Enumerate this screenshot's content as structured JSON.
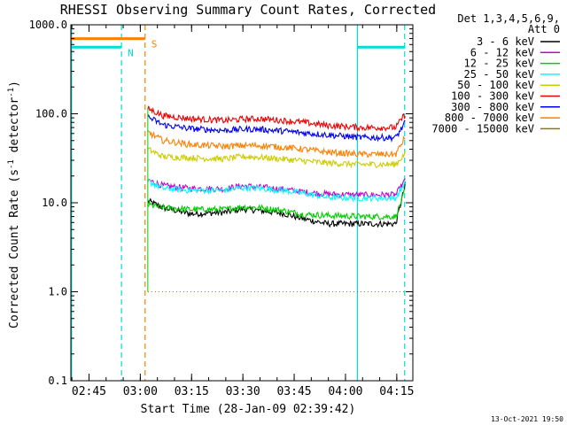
{
  "chart_data": {
    "type": "line",
    "title": "RHESSI Observing Summary Count Rates, Corrected",
    "xlabel": "Start Time (28-Jan-09 02:39:42)",
    "ylabel": "Corrected Count Rate (s",
    "ylabel_sup1": "-1",
    "ylabel_mid": " detector",
    "ylabel_sup2": "-1",
    "ylabel_end": ")",
    "x_unit": "minutes after 02:39:42",
    "xlim": [
      0,
      100
    ],
    "ylim": [
      0.1,
      1000
    ],
    "y_scale": "log",
    "x_ticks": [
      {
        "x": 5.3,
        "label": "02:45"
      },
      {
        "x": 20.3,
        "label": "03:00"
      },
      {
        "x": 35.3,
        "label": "03:15"
      },
      {
        "x": 50.3,
        "label": "03:30"
      },
      {
        "x": 65.3,
        "label": "03:45"
      },
      {
        "x": 80.3,
        "label": "04:00"
      },
      {
        "x": 95.3,
        "label": "04:15"
      }
    ],
    "y_ticks": [
      {
        "y": 0.1,
        "label": "0.1"
      },
      {
        "y": 1,
        "label": "1.0"
      },
      {
        "y": 10,
        "label": "10.0"
      },
      {
        "y": 100,
        "label": "100.0"
      },
      {
        "y": 1000,
        "label": "1000.0"
      }
    ],
    "legend": {
      "position": "right",
      "header1": "Det 1,3,4,5,6,9,",
      "header2": "Att 0"
    },
    "data_start_x": 22.5,
    "data_end_x": 97.8,
    "series": [
      {
        "name": "3 - 6 keV",
        "color": "#000000",
        "points": [
          [
            22.5,
            10.5
          ],
          [
            27,
            8.8
          ],
          [
            35,
            7.5
          ],
          [
            45,
            7.8
          ],
          [
            50,
            8.5
          ],
          [
            55,
            8.2
          ],
          [
            62,
            7.6
          ],
          [
            68,
            6.6
          ],
          [
            75,
            5.8
          ],
          [
            85,
            5.8
          ],
          [
            95,
            5.8
          ],
          [
            97.8,
            16
          ]
        ]
      },
      {
        "name": "6 - 12 keV",
        "color": "#cc00cc",
        "points": [
          [
            22.5,
            18
          ],
          [
            27,
            15.5
          ],
          [
            35,
            14.5
          ],
          [
            45,
            14.3
          ],
          [
            50,
            15.5
          ],
          [
            55,
            15
          ],
          [
            62,
            14.2
          ],
          [
            68,
            13.2
          ],
          [
            75,
            12.5
          ],
          [
            85,
            12.2
          ],
          [
            95,
            12.3
          ],
          [
            97.8,
            18
          ]
        ]
      },
      {
        "name": "12 - 25 keV",
        "color": "#00cc00",
        "points": [
          [
            22.5,
            9.5
          ],
          [
            27,
            8.8
          ],
          [
            35,
            8.4
          ],
          [
            45,
            8.4
          ],
          [
            50,
            9.0
          ],
          [
            55,
            8.8
          ],
          [
            62,
            8.2
          ],
          [
            68,
            7.4
          ],
          [
            75,
            7.2
          ],
          [
            85,
            7.0
          ],
          [
            95,
            7.0
          ],
          [
            97.8,
            14
          ]
        ]
      },
      {
        "name": "25 - 50 keV",
        "color": "#00ffff",
        "points": [
          [
            22.5,
            17.5
          ],
          [
            27,
            14.5
          ],
          [
            35,
            13.8
          ],
          [
            45,
            13.8
          ],
          [
            50,
            14.8
          ],
          [
            55,
            14.5
          ],
          [
            62,
            13.8
          ],
          [
            68,
            12.8
          ],
          [
            75,
            11.5
          ],
          [
            85,
            11.3
          ],
          [
            95,
            11.3
          ],
          [
            97.8,
            17
          ]
        ]
      },
      {
        "name": "50 - 100 keV",
        "color": "#cccc00",
        "points": [
          [
            22.5,
            40
          ],
          [
            27,
            33
          ],
          [
            35,
            32
          ],
          [
            45,
            31
          ],
          [
            50,
            33
          ],
          [
            55,
            32.5
          ],
          [
            62,
            31
          ],
          [
            68,
            29.5
          ],
          [
            75,
            28
          ],
          [
            85,
            27
          ],
          [
            95,
            27
          ],
          [
            97.8,
            36
          ]
        ]
      },
      {
        "name": "100 - 300 keV",
        "color": "#ee0000",
        "points": [
          [
            22.5,
            115
          ],
          [
            27,
            95
          ],
          [
            35,
            88
          ],
          [
            45,
            84
          ],
          [
            50,
            87
          ],
          [
            55,
            88
          ],
          [
            62,
            84
          ],
          [
            68,
            80
          ],
          [
            75,
            74
          ],
          [
            85,
            70
          ],
          [
            95,
            70
          ],
          [
            97.8,
            100
          ]
        ]
      },
      {
        "name": "300 - 800 keV",
        "color": "#0000ee",
        "points": [
          [
            22.5,
            92
          ],
          [
            27,
            75
          ],
          [
            35,
            68
          ],
          [
            45,
            65
          ],
          [
            50,
            67
          ],
          [
            55,
            67
          ],
          [
            62,
            64
          ],
          [
            68,
            61
          ],
          [
            75,
            58
          ],
          [
            85,
            54
          ],
          [
            95,
            54
          ],
          [
            97.8,
            80
          ]
        ]
      },
      {
        "name": "800 - 7000 keV",
        "color": "#ff7f00",
        "points": [
          [
            22.5,
            62
          ],
          [
            27,
            50
          ],
          [
            35,
            45
          ],
          [
            45,
            43
          ],
          [
            50,
            44
          ],
          [
            55,
            44
          ],
          [
            62,
            42
          ],
          [
            68,
            40
          ],
          [
            75,
            37
          ],
          [
            85,
            35
          ],
          [
            95,
            35
          ],
          [
            97.8,
            55
          ]
        ]
      },
      {
        "name": "7000 - 15000 keV",
        "color": "#808000",
        "points": [
          [
            22.5,
            1.0
          ],
          [
            40,
            1.0
          ],
          [
            50,
            1.0
          ],
          [
            70,
            1.0
          ],
          [
            85,
            1.0
          ],
          [
            97.8,
            1.0
          ]
        ]
      }
    ],
    "flags": [
      {
        "label": "N",
        "color": "#00dddd",
        "level": 560,
        "spans": [
          [
            0,
            14.8
          ],
          [
            83.8,
            97.8
          ]
        ]
      },
      {
        "label": "S",
        "color": "#ff7f00",
        "level": 700,
        "spans": [
          [
            0,
            21.7
          ]
        ]
      }
    ],
    "vlines": [
      {
        "x": 0.2,
        "color": "#00dddd",
        "style": "solid"
      },
      {
        "x": 14.8,
        "color": "#00dddd",
        "style": "dashed"
      },
      {
        "x": 21.7,
        "color": "#ff7f00",
        "style": "dashed"
      },
      {
        "x": 83.8,
        "color": "#00dddd",
        "style": "solid"
      },
      {
        "x": 97.6,
        "color": "#00dddd",
        "style": "dashed"
      }
    ],
    "footer": "13-Oct-2021 19:50"
  }
}
